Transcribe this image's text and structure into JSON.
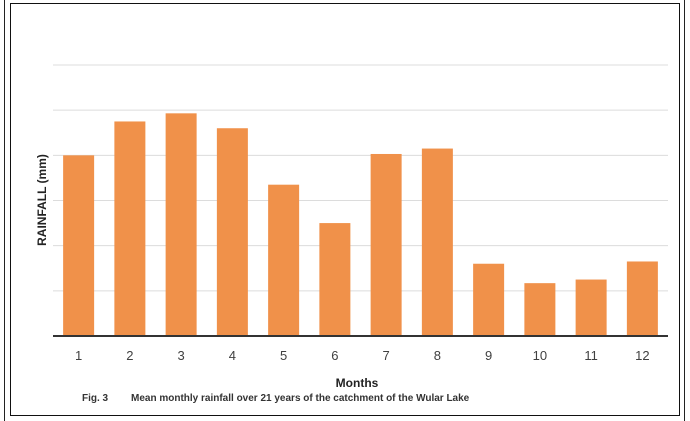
{
  "chart_data": {
    "type": "bar",
    "categories": [
      "1",
      "2",
      "3",
      "4",
      "5",
      "6",
      "7",
      "8",
      "9",
      "10",
      "11",
      "12"
    ],
    "values": [
      4.0,
      4.75,
      4.93,
      4.6,
      3.35,
      2.5,
      4.03,
      4.15,
      1.6,
      1.17,
      1.25,
      1.65
    ],
    "xlabel": "Months",
    "ylabel": "RAINFALL (mm)",
    "ylim": [
      0,
      6
    ],
    "grid": true,
    "bar_color": "#f0914a",
    "caption_number": "Fig. 3",
    "caption": "Mean monthly rainfall over 21 years of the catchment of the Wular Lake"
  }
}
